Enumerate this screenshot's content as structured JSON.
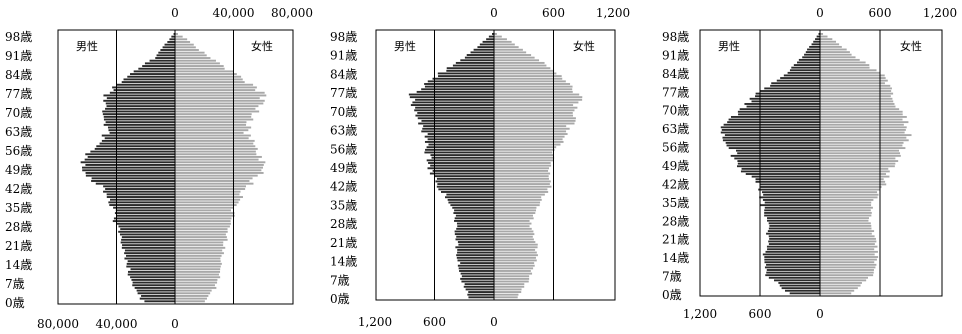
{
  "chart_data": [
    {
      "type": "bar",
      "male_label": "男性",
      "female_label": "女性",
      "age_ticks": [
        "0歳",
        "7歳",
        "14歳",
        "21歳",
        "28歳",
        "35歳",
        "42歳",
        "49歳",
        "56歳",
        "63歳",
        "70歳",
        "77歳",
        "84歳",
        "91歳",
        "98歳"
      ],
      "top_ticks": [
        "0",
        "40,000",
        "80,000"
      ],
      "bottom_ticks": [
        "80,000",
        "40,000",
        "0"
      ],
      "xlim": [
        0,
        80000
      ],
      "profile": {
        "ages": [
          0,
          7,
          14,
          21,
          28,
          35,
          42,
          49,
          56,
          63,
          70,
          77,
          84,
          91,
          98,
          100
        ],
        "male": [
          22000,
          30000,
          32000,
          36000,
          40000,
          42000,
          48000,
          66000,
          58000,
          47000,
          50000,
          48000,
          34000,
          14000,
          4000,
          1000
        ],
        "female": [
          21000,
          30000,
          32000,
          34000,
          38000,
          40000,
          48000,
          60000,
          58000,
          48000,
          54000,
          62000,
          44000,
          24000,
          8000,
          2000
        ]
      }
    },
    {
      "type": "bar",
      "male_label": "男性",
      "female_label": "女性",
      "age_ticks": [
        "0歳",
        "7歳",
        "14歳",
        "21歳",
        "28歳",
        "35歳",
        "42歳",
        "49歳",
        "56歳",
        "63歳",
        "70歳",
        "77歳",
        "84歳",
        "91歳",
        "98歳"
      ],
      "top_ticks": [
        "0",
        "600",
        "1,200"
      ],
      "bottom_ticks": [
        "1,200",
        "600",
        "0"
      ],
      "xlim": [
        0,
        1200
      ],
      "profile": {
        "ages": [
          0,
          7,
          14,
          21,
          28,
          35,
          42,
          49,
          56,
          63,
          70,
          77,
          84,
          91,
          98,
          100
        ],
        "male": [
          250,
          330,
          360,
          380,
          380,
          430,
          560,
          640,
          680,
          700,
          800,
          820,
          580,
          300,
          80,
          20
        ],
        "female": [
          240,
          350,
          430,
          420,
          360,
          450,
          560,
          560,
          620,
          740,
          820,
          860,
          680,
          420,
          130,
          30
        ]
      }
    },
    {
      "type": "bar",
      "male_label": "男性",
      "female_label": "女性",
      "age_ticks": [
        "0歳",
        "7歳",
        "14歳",
        "21歳",
        "28歳",
        "35歳",
        "42歳",
        "49歳",
        "56歳",
        "63歳",
        "70歳",
        "77歳",
        "84歳",
        "91歳",
        "98歳"
      ],
      "top_ticks": [
        "0",
        "600",
        "1,200"
      ],
      "bottom_ticks": [
        "1,200",
        "600",
        "0"
      ],
      "xlim": [
        0,
        1200
      ],
      "profile": {
        "ages": [
          0,
          7,
          14,
          21,
          28,
          35,
          42,
          49,
          56,
          63,
          70,
          77,
          84,
          91,
          98,
          100
        ],
        "male": [
          300,
          540,
          560,
          520,
          520,
          580,
          600,
          820,
          880,
          1000,
          800,
          620,
          360,
          180,
          50,
          15
        ],
        "female": [
          300,
          520,
          560,
          540,
          500,
          520,
          640,
          720,
          820,
          900,
          800,
          720,
          640,
          360,
          120,
          30
        ]
      }
    }
  ]
}
